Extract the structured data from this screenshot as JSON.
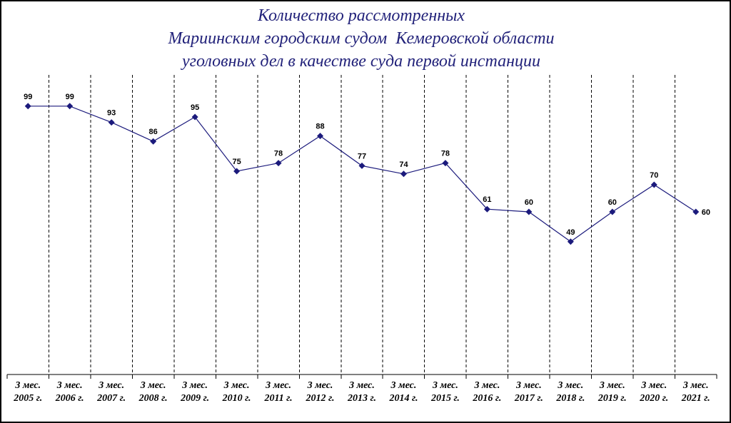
{
  "chart_data": {
    "type": "line",
    "title": "Количество рассмотренных\nМариинским городским судом  Кемеровской области\nуголовных дел в качестве суда первой инстанции",
    "categories": [
      "3 мес.\n2005 г.",
      "3 мес.\n2006 г.",
      "3 мес.\n2007 г.",
      "3 мес.\n2008 г.",
      "3 мес.\n2009 г.",
      "3 мес.\n2010 г.",
      "3 мес.\n2011 г.",
      "3 мес.\n2012 г.",
      "3 мес.\n2013 г.",
      "3 мес.\n2014 г.",
      "3 мес.\n2015 г.",
      "3 мес.\n2016 г.",
      "3 мес.\n2017 г.",
      "3 мес.\n2018 г.",
      "3 мес.\n2019 г.",
      "3 мес.\n2020 г.",
      "3 мес.\n2021 г."
    ],
    "values": [
      99,
      99,
      93,
      86,
      95,
      75,
      78,
      88,
      77,
      74,
      78,
      61,
      60,
      49,
      60,
      70,
      60
    ],
    "ylim": [
      0,
      110
    ],
    "grid_vertical": true,
    "grid_horizontal": false,
    "show_legend": false,
    "data_labels": true,
    "colors": {
      "series": "#1b1a7c",
      "title": "#22227a",
      "axis": "#000000"
    }
  }
}
